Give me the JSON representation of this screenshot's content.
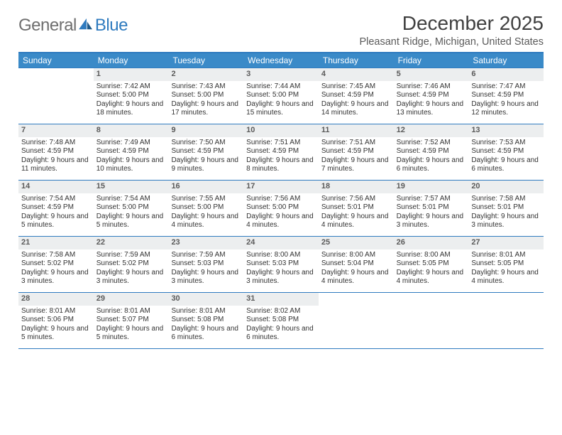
{
  "brand": {
    "general": "General",
    "blue": "Blue"
  },
  "title": "December 2025",
  "location": "Pleasant Ridge, Michigan, United States",
  "colors": {
    "header_bg": "#3a8ac8",
    "rule": "#2f7bbf",
    "daynum_bg": "#eceeef",
    "text": "#333333",
    "muted": "#5a5a5a"
  },
  "day_names": [
    "Sunday",
    "Monday",
    "Tuesday",
    "Wednesday",
    "Thursday",
    "Friday",
    "Saturday"
  ],
  "weeks": [
    [
      {
        "n": "",
        "empty": true
      },
      {
        "n": "1",
        "sunrise": "7:42 AM",
        "sunset": "5:00 PM",
        "daylight": "9 hours and 18 minutes."
      },
      {
        "n": "2",
        "sunrise": "7:43 AM",
        "sunset": "5:00 PM",
        "daylight": "9 hours and 17 minutes."
      },
      {
        "n": "3",
        "sunrise": "7:44 AM",
        "sunset": "5:00 PM",
        "daylight": "9 hours and 15 minutes."
      },
      {
        "n": "4",
        "sunrise": "7:45 AM",
        "sunset": "4:59 PM",
        "daylight": "9 hours and 14 minutes."
      },
      {
        "n": "5",
        "sunrise": "7:46 AM",
        "sunset": "4:59 PM",
        "daylight": "9 hours and 13 minutes."
      },
      {
        "n": "6",
        "sunrise": "7:47 AM",
        "sunset": "4:59 PM",
        "daylight": "9 hours and 12 minutes."
      }
    ],
    [
      {
        "n": "7",
        "sunrise": "7:48 AM",
        "sunset": "4:59 PM",
        "daylight": "9 hours and 11 minutes."
      },
      {
        "n": "8",
        "sunrise": "7:49 AM",
        "sunset": "4:59 PM",
        "daylight": "9 hours and 10 minutes."
      },
      {
        "n": "9",
        "sunrise": "7:50 AM",
        "sunset": "4:59 PM",
        "daylight": "9 hours and 9 minutes."
      },
      {
        "n": "10",
        "sunrise": "7:51 AM",
        "sunset": "4:59 PM",
        "daylight": "9 hours and 8 minutes."
      },
      {
        "n": "11",
        "sunrise": "7:51 AM",
        "sunset": "4:59 PM",
        "daylight": "9 hours and 7 minutes."
      },
      {
        "n": "12",
        "sunrise": "7:52 AM",
        "sunset": "4:59 PM",
        "daylight": "9 hours and 6 minutes."
      },
      {
        "n": "13",
        "sunrise": "7:53 AM",
        "sunset": "4:59 PM",
        "daylight": "9 hours and 6 minutes."
      }
    ],
    [
      {
        "n": "14",
        "sunrise": "7:54 AM",
        "sunset": "4:59 PM",
        "daylight": "9 hours and 5 minutes."
      },
      {
        "n": "15",
        "sunrise": "7:54 AM",
        "sunset": "5:00 PM",
        "daylight": "9 hours and 5 minutes."
      },
      {
        "n": "16",
        "sunrise": "7:55 AM",
        "sunset": "5:00 PM",
        "daylight": "9 hours and 4 minutes."
      },
      {
        "n": "17",
        "sunrise": "7:56 AM",
        "sunset": "5:00 PM",
        "daylight": "9 hours and 4 minutes."
      },
      {
        "n": "18",
        "sunrise": "7:56 AM",
        "sunset": "5:01 PM",
        "daylight": "9 hours and 4 minutes."
      },
      {
        "n": "19",
        "sunrise": "7:57 AM",
        "sunset": "5:01 PM",
        "daylight": "9 hours and 3 minutes."
      },
      {
        "n": "20",
        "sunrise": "7:58 AM",
        "sunset": "5:01 PM",
        "daylight": "9 hours and 3 minutes."
      }
    ],
    [
      {
        "n": "21",
        "sunrise": "7:58 AM",
        "sunset": "5:02 PM",
        "daylight": "9 hours and 3 minutes."
      },
      {
        "n": "22",
        "sunrise": "7:59 AM",
        "sunset": "5:02 PM",
        "daylight": "9 hours and 3 minutes."
      },
      {
        "n": "23",
        "sunrise": "7:59 AM",
        "sunset": "5:03 PM",
        "daylight": "9 hours and 3 minutes."
      },
      {
        "n": "24",
        "sunrise": "8:00 AM",
        "sunset": "5:03 PM",
        "daylight": "9 hours and 3 minutes."
      },
      {
        "n": "25",
        "sunrise": "8:00 AM",
        "sunset": "5:04 PM",
        "daylight": "9 hours and 4 minutes."
      },
      {
        "n": "26",
        "sunrise": "8:00 AM",
        "sunset": "5:05 PM",
        "daylight": "9 hours and 4 minutes."
      },
      {
        "n": "27",
        "sunrise": "8:01 AM",
        "sunset": "5:05 PM",
        "daylight": "9 hours and 4 minutes."
      }
    ],
    [
      {
        "n": "28",
        "sunrise": "8:01 AM",
        "sunset": "5:06 PM",
        "daylight": "9 hours and 5 minutes."
      },
      {
        "n": "29",
        "sunrise": "8:01 AM",
        "sunset": "5:07 PM",
        "daylight": "9 hours and 5 minutes."
      },
      {
        "n": "30",
        "sunrise": "8:01 AM",
        "sunset": "5:08 PM",
        "daylight": "9 hours and 6 minutes."
      },
      {
        "n": "31",
        "sunrise": "8:02 AM",
        "sunset": "5:08 PM",
        "daylight": "9 hours and 6 minutes."
      },
      {
        "n": "",
        "empty": true
      },
      {
        "n": "",
        "empty": true
      },
      {
        "n": "",
        "empty": true
      }
    ]
  ],
  "labels": {
    "sunrise": "Sunrise:",
    "sunset": "Sunset:",
    "daylight": "Daylight:"
  }
}
